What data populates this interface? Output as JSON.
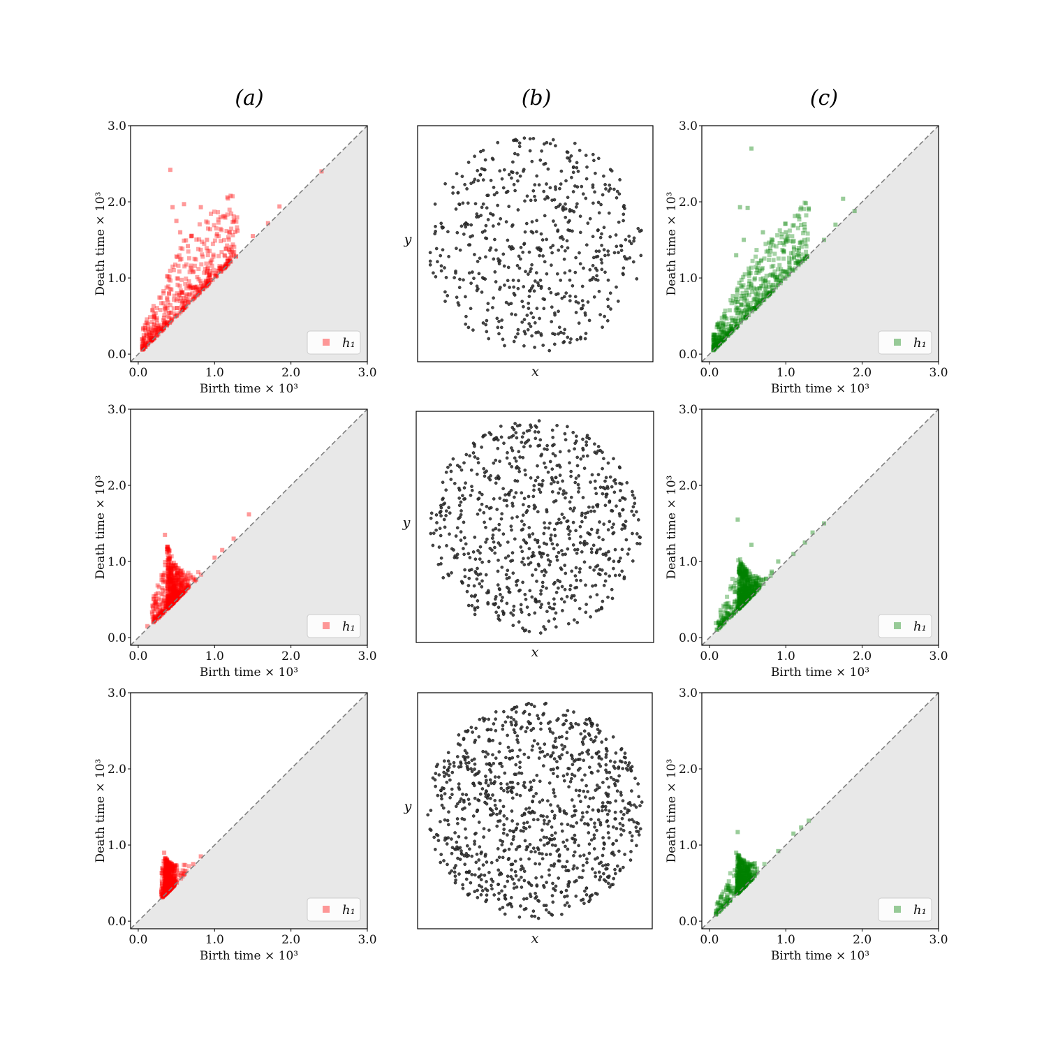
{
  "figure": {
    "column_titles": [
      "(a)",
      "(b)",
      "(c)"
    ]
  },
  "colors": {
    "persistence_a": "#ff0000",
    "persistence_c": "#008000",
    "scatter_points": "#333333",
    "diagonal": "#808080",
    "below_diagonal_fill": "#e8e8e8"
  },
  "chart_data": [
    {
      "id": "a1",
      "type": "scatter",
      "xlabel": "Birth time × 10³",
      "ylabel": "Death time × 10³",
      "xlim": [
        -0.1,
        3.0
      ],
      "ylim": [
        -0.1,
        3.0
      ],
      "xticks": [
        "0.0",
        "1.0",
        "2.0",
        "3.0"
      ],
      "yticks": [
        "0.0",
        "1.0",
        "2.0",
        "3.0"
      ],
      "legend": {
        "label": "h₁",
        "position": "lower-right"
      },
      "diagonal": true,
      "color": "#ff0000",
      "cluster": {
        "n": 480,
        "x_range": [
          0.05,
          1.3
        ],
        "max_gap": 0.9
      },
      "outliers": [
        [
          0.42,
          2.42
        ],
        [
          2.4,
          2.4
        ],
        [
          0.45,
          1.93
        ],
        [
          0.6,
          1.97
        ],
        [
          0.82,
          1.93
        ],
        [
          1.85,
          1.94
        ],
        [
          1.7,
          1.72
        ],
        [
          0.5,
          1.75
        ],
        [
          0.55,
          1.6
        ],
        [
          1.3,
          1.62
        ],
        [
          1.2,
          1.6
        ],
        [
          0.9,
          1.5
        ],
        [
          0.7,
          1.55
        ],
        [
          1.5,
          1.55
        ],
        [
          0.65,
          1.42
        ]
      ]
    },
    {
      "id": "b1",
      "type": "scatter",
      "xlabel": "x",
      "ylabel": "y",
      "shape": "disk",
      "n_points": 560
    },
    {
      "id": "c1",
      "type": "scatter",
      "xlabel": "Birth time × 10³",
      "ylabel": "Death time × 10³",
      "xlim": [
        -0.1,
        3.0
      ],
      "ylim": [
        -0.1,
        3.0
      ],
      "xticks": [
        "0.0",
        "1.0",
        "2.0",
        "3.0"
      ],
      "yticks": [
        "0.0",
        "1.0",
        "2.0",
        "3.0"
      ],
      "legend": {
        "label": "h₁",
        "position": "lower-right"
      },
      "diagonal": true,
      "color": "#008000",
      "cluster": {
        "n": 520,
        "x_range": [
          0.05,
          1.3
        ],
        "max_gap": 0.75
      },
      "outliers": [
        [
          0.55,
          2.7
        ],
        [
          0.4,
          1.93
        ],
        [
          0.5,
          1.92
        ],
        [
          1.75,
          2.04
        ],
        [
          1.9,
          1.88
        ],
        [
          1.3,
          1.9
        ],
        [
          0.7,
          1.6
        ],
        [
          0.45,
          1.5
        ],
        [
          1.0,
          1.6
        ],
        [
          0.8,
          1.35
        ],
        [
          1.5,
          1.5
        ],
        [
          1.65,
          1.7
        ],
        [
          0.35,
          1.3
        ]
      ]
    },
    {
      "id": "a2",
      "type": "scatter",
      "xlabel": "Birth time × 10³",
      "ylabel": "Death time × 10³",
      "xlim": [
        -0.1,
        3.0
      ],
      "ylim": [
        -0.1,
        3.0
      ],
      "xticks": [
        "0.0",
        "1.0",
        "2.0",
        "3.0"
      ],
      "yticks": [
        "0.0",
        "1.0",
        "2.0",
        "3.0"
      ],
      "legend": {
        "label": "h₁",
        "position": "lower-right"
      },
      "diagonal": true,
      "color": "#ff0000",
      "cluster": {
        "n": 650,
        "x_range": [
          0.18,
          0.95
        ],
        "max_gap": 0.85,
        "peak_x": 0.38
      },
      "outliers": [
        [
          1.45,
          1.62
        ],
        [
          0.35,
          1.35
        ],
        [
          1.25,
          1.3
        ],
        [
          1.1,
          1.15
        ],
        [
          1.0,
          1.05
        ],
        [
          0.12,
          0.15
        ],
        [
          0.2,
          0.25
        ]
      ]
    },
    {
      "id": "b2",
      "type": "scatter",
      "xlabel": "x",
      "ylabel": "y",
      "shape": "disk",
      "n_points": 760
    },
    {
      "id": "c2",
      "type": "scatter",
      "xlabel": "Birth time × 10³",
      "ylabel": "Death time × 10³",
      "xlim": [
        -0.1,
        3.0
      ],
      "ylim": [
        -0.1,
        3.0
      ],
      "xticks": [
        "0.0",
        "1.0",
        "2.0",
        "3.0"
      ],
      "yticks": [
        "0.0",
        "1.0",
        "2.0",
        "3.0"
      ],
      "legend": {
        "label": "h₁",
        "position": "lower-right"
      },
      "diagonal": true,
      "color": "#008000",
      "cluster": {
        "n": 650,
        "x_range": [
          0.08,
          0.95
        ],
        "max_gap": 0.7,
        "peak_x": 0.38
      },
      "outliers": [
        [
          0.37,
          1.55
        ],
        [
          1.5,
          1.5
        ],
        [
          1.35,
          1.38
        ],
        [
          1.25,
          1.25
        ],
        [
          0.55,
          1.22
        ],
        [
          1.1,
          1.1
        ],
        [
          0.9,
          1.0
        ]
      ]
    },
    {
      "id": "a3",
      "type": "scatter",
      "xlabel": "Birth time × 10³",
      "ylabel": "Death time × 10³",
      "xlim": [
        -0.1,
        3.0
      ],
      "ylim": [
        -0.1,
        3.0
      ],
      "xticks": [
        "0.0",
        "1.0",
        "2.0",
        "3.0"
      ],
      "yticks": [
        "0.0",
        "1.0",
        "2.0",
        "3.0"
      ],
      "legend": {
        "label": "h₁",
        "position": "lower-right"
      },
      "diagonal": true,
      "color": "#ff0000",
      "cluster": {
        "n": 600,
        "x_range": [
          0.3,
          0.7
        ],
        "max_gap": 0.5,
        "peak_x": 0.35
      },
      "outliers": [
        [
          0.82,
          0.85
        ],
        [
          0.72,
          0.75
        ],
        [
          0.34,
          0.9
        ]
      ]
    },
    {
      "id": "b3",
      "type": "scatter",
      "xlabel": "x",
      "ylabel": "y",
      "shape": "disk",
      "n_points": 1000
    },
    {
      "id": "c3",
      "type": "scatter",
      "xlabel": "Birth time × 10³",
      "ylabel": "Death time × 10³",
      "xlim": [
        -0.1,
        3.0
      ],
      "ylim": [
        -0.1,
        3.0
      ],
      "xticks": [
        "0.0",
        "1.0",
        "2.0",
        "3.0"
      ],
      "yticks": [
        "0.0",
        "1.0",
        "2.0",
        "3.0"
      ],
      "legend": {
        "label": "h₁",
        "position": "lower-right"
      },
      "diagonal": true,
      "color": "#008000",
      "cluster": {
        "n": 600,
        "x_range": [
          0.08,
          0.85
        ],
        "max_gap": 0.55,
        "peak_x": 0.36
      },
      "outliers": [
        [
          0.37,
          1.17
        ],
        [
          1.3,
          1.32
        ],
        [
          1.2,
          1.23
        ],
        [
          1.1,
          1.15
        ],
        [
          0.9,
          0.92
        ],
        [
          0.35,
          0.9
        ]
      ]
    }
  ]
}
